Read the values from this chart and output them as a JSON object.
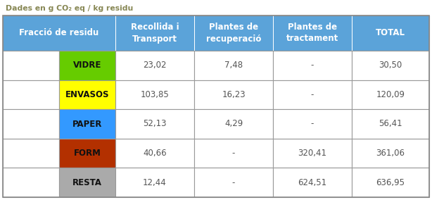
{
  "title": "Dades en g CO₂ eq / kg residu",
  "header_col0": "Fracció de residu",
  "headers": [
    "Recollida i\nTransport",
    "Plantes de\nrecuperació",
    "Plantes de\ntractament",
    "TOTAL"
  ],
  "rows": [
    {
      "label": "VIDRE",
      "bg": "#66cc00",
      "col1": "23,02",
      "col2": "7,48",
      "col3": "-",
      "col4": "30,50"
    },
    {
      "label": "ENVASOS",
      "bg": "#ffff00",
      "col1": "103,85",
      "col2": "16,23",
      "col3": "-",
      "col4": "120,09"
    },
    {
      "label": "PAPER",
      "bg": "#3399ff",
      "col1": "52,13",
      "col2": "4,29",
      "col3": "-",
      "col4": "56,41"
    },
    {
      "label": "FORM",
      "bg": "#b33000",
      "col1": "40,66",
      "col2": "-",
      "col3": "320,41",
      "col4": "361,06"
    },
    {
      "label": "RESTA",
      "bg": "#aaaaaa",
      "col1": "12,44",
      "col2": "-",
      "col3": "624,51",
      "col4": "636,95"
    }
  ],
  "header_bg": "#5ba3d9",
  "header_text_color": "#ffffff",
  "cell_bg": "#ffffff",
  "title_color": "#888855",
  "data_text_color": "#555555",
  "fig_width": 6.14,
  "fig_height": 2.84,
  "dpi": 100
}
